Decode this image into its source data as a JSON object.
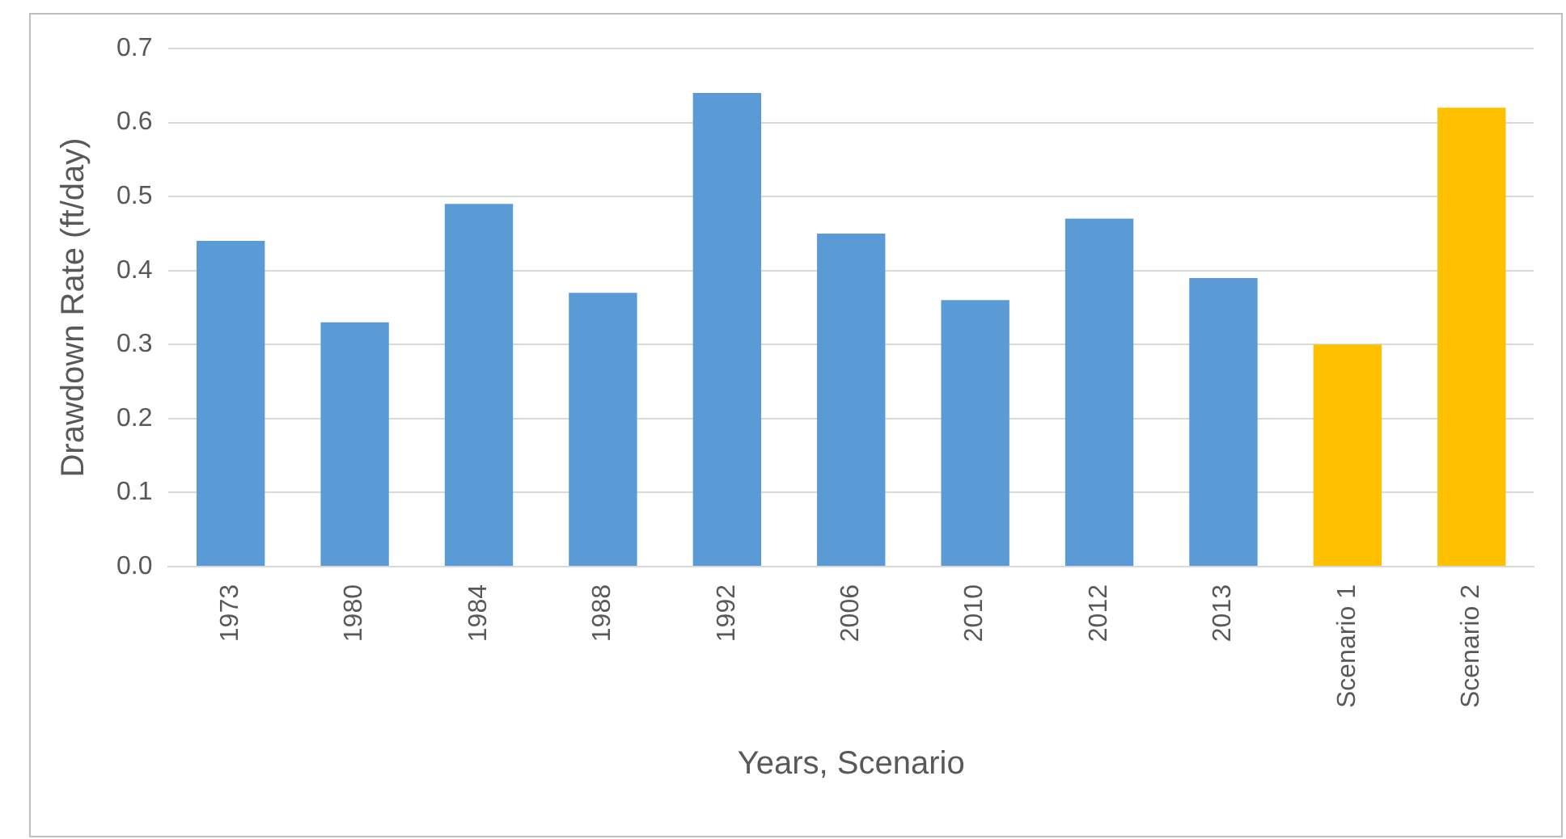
{
  "chart_data": {
    "type": "bar",
    "xlabel": "Years, Scenario",
    "ylabel": "Drawdown Rate (ft/day)",
    "categories": [
      "1973",
      "1980",
      "1984",
      "1988",
      "1992",
      "2006",
      "2010",
      "2012",
      "2013",
      "Scenario 1",
      "Scenario 2"
    ],
    "values": [
      0.44,
      0.33,
      0.49,
      0.37,
      0.64,
      0.45,
      0.36,
      0.47,
      0.39,
      0.3,
      0.62
    ],
    "colors": [
      "#5b9bd5",
      "#5b9bd5",
      "#5b9bd5",
      "#5b9bd5",
      "#5b9bd5",
      "#5b9bd5",
      "#5b9bd5",
      "#5b9bd5",
      "#5b9bd5",
      "#ffc000",
      "#ffc000"
    ],
    "ylim": [
      0,
      0.7
    ],
    "yticks": [
      {
        "value": 0,
        "label": "0.0"
      },
      0.1,
      0.2,
      0.3,
      0.4,
      0.5,
      0.6,
      0.7
    ],
    "grid": "y",
    "legend": false
  }
}
